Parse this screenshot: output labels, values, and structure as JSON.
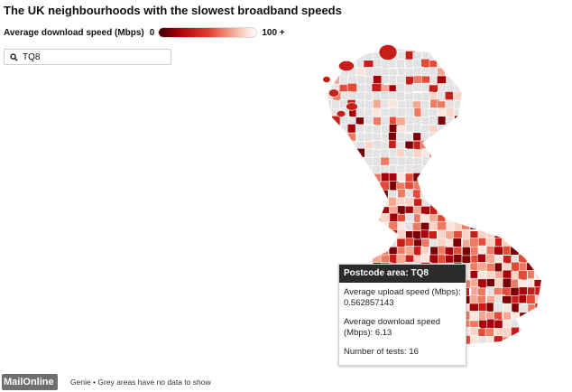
{
  "title": "The UK neighbourhoods with the slowest broadband speeds",
  "legend": {
    "label": "Average download speed (Mbps)",
    "min_label": "0",
    "max_label": "100 +"
  },
  "search": {
    "value": "TQ8"
  },
  "tooltip": {
    "heading": "Postcode area: TQ8",
    "upload_label": "Average upload speed (Mbps): 0.562857143",
    "download_label": "Average download speed (Mbps): 6.13",
    "tests_label": "Number of tests: 16"
  },
  "footer": {
    "text": "Genie • Grey areas have no data to show"
  },
  "logo": "MailOnline",
  "colors": {
    "no_data": "#e3e3e3",
    "slow": "#a8000a",
    "fast": "#ffffff"
  }
}
